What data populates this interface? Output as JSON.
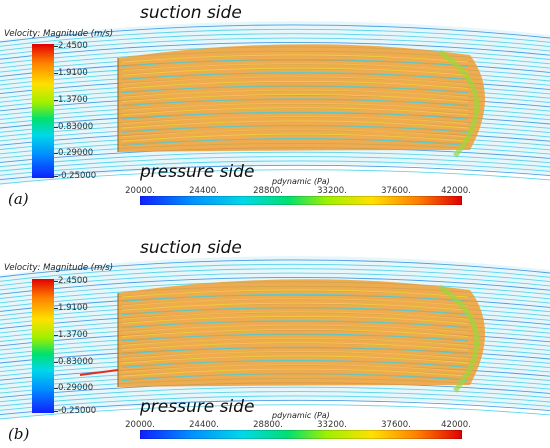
{
  "figure": {
    "panels": [
      {
        "letter": "(a)",
        "suction_label": "suction side",
        "pressure_label": "pressure side",
        "velocity_title": "Velocity: Magnitude (m/s)",
        "velocity_ticks": [
          "2.4500",
          "1.9100",
          "1.3700",
          "0.83000",
          "0.29000",
          "-0.25000"
        ],
        "pressure_title": "pdynamic (Pa)",
        "pressure_ticks": [
          "20000.",
          "24400.",
          "28800.",
          "33200.",
          "37600.",
          "42000."
        ]
      },
      {
        "letter": "(b)",
        "suction_label": "suction side",
        "pressure_label": "pressure side",
        "velocity_title": "Velocity: Magnitude (m/s)",
        "velocity_ticks": [
          "2.4500",
          "1.9100",
          "1.3700",
          "0.83000",
          "0.29000",
          "-0.25000"
        ],
        "pressure_title": "pdynamic (Pa)",
        "pressure_ticks": [
          "20000.",
          "24400.",
          "28800.",
          "33200.",
          "37600.",
          "42000."
        ]
      }
    ],
    "colors": {
      "streamline_cyan": "#3fd0e8",
      "streamline_blue": "#2a8fe0",
      "blade_orange": "#f09a2a",
      "blade_yellow": "#f4d23a",
      "blade_green": "#9ad83a"
    }
  }
}
